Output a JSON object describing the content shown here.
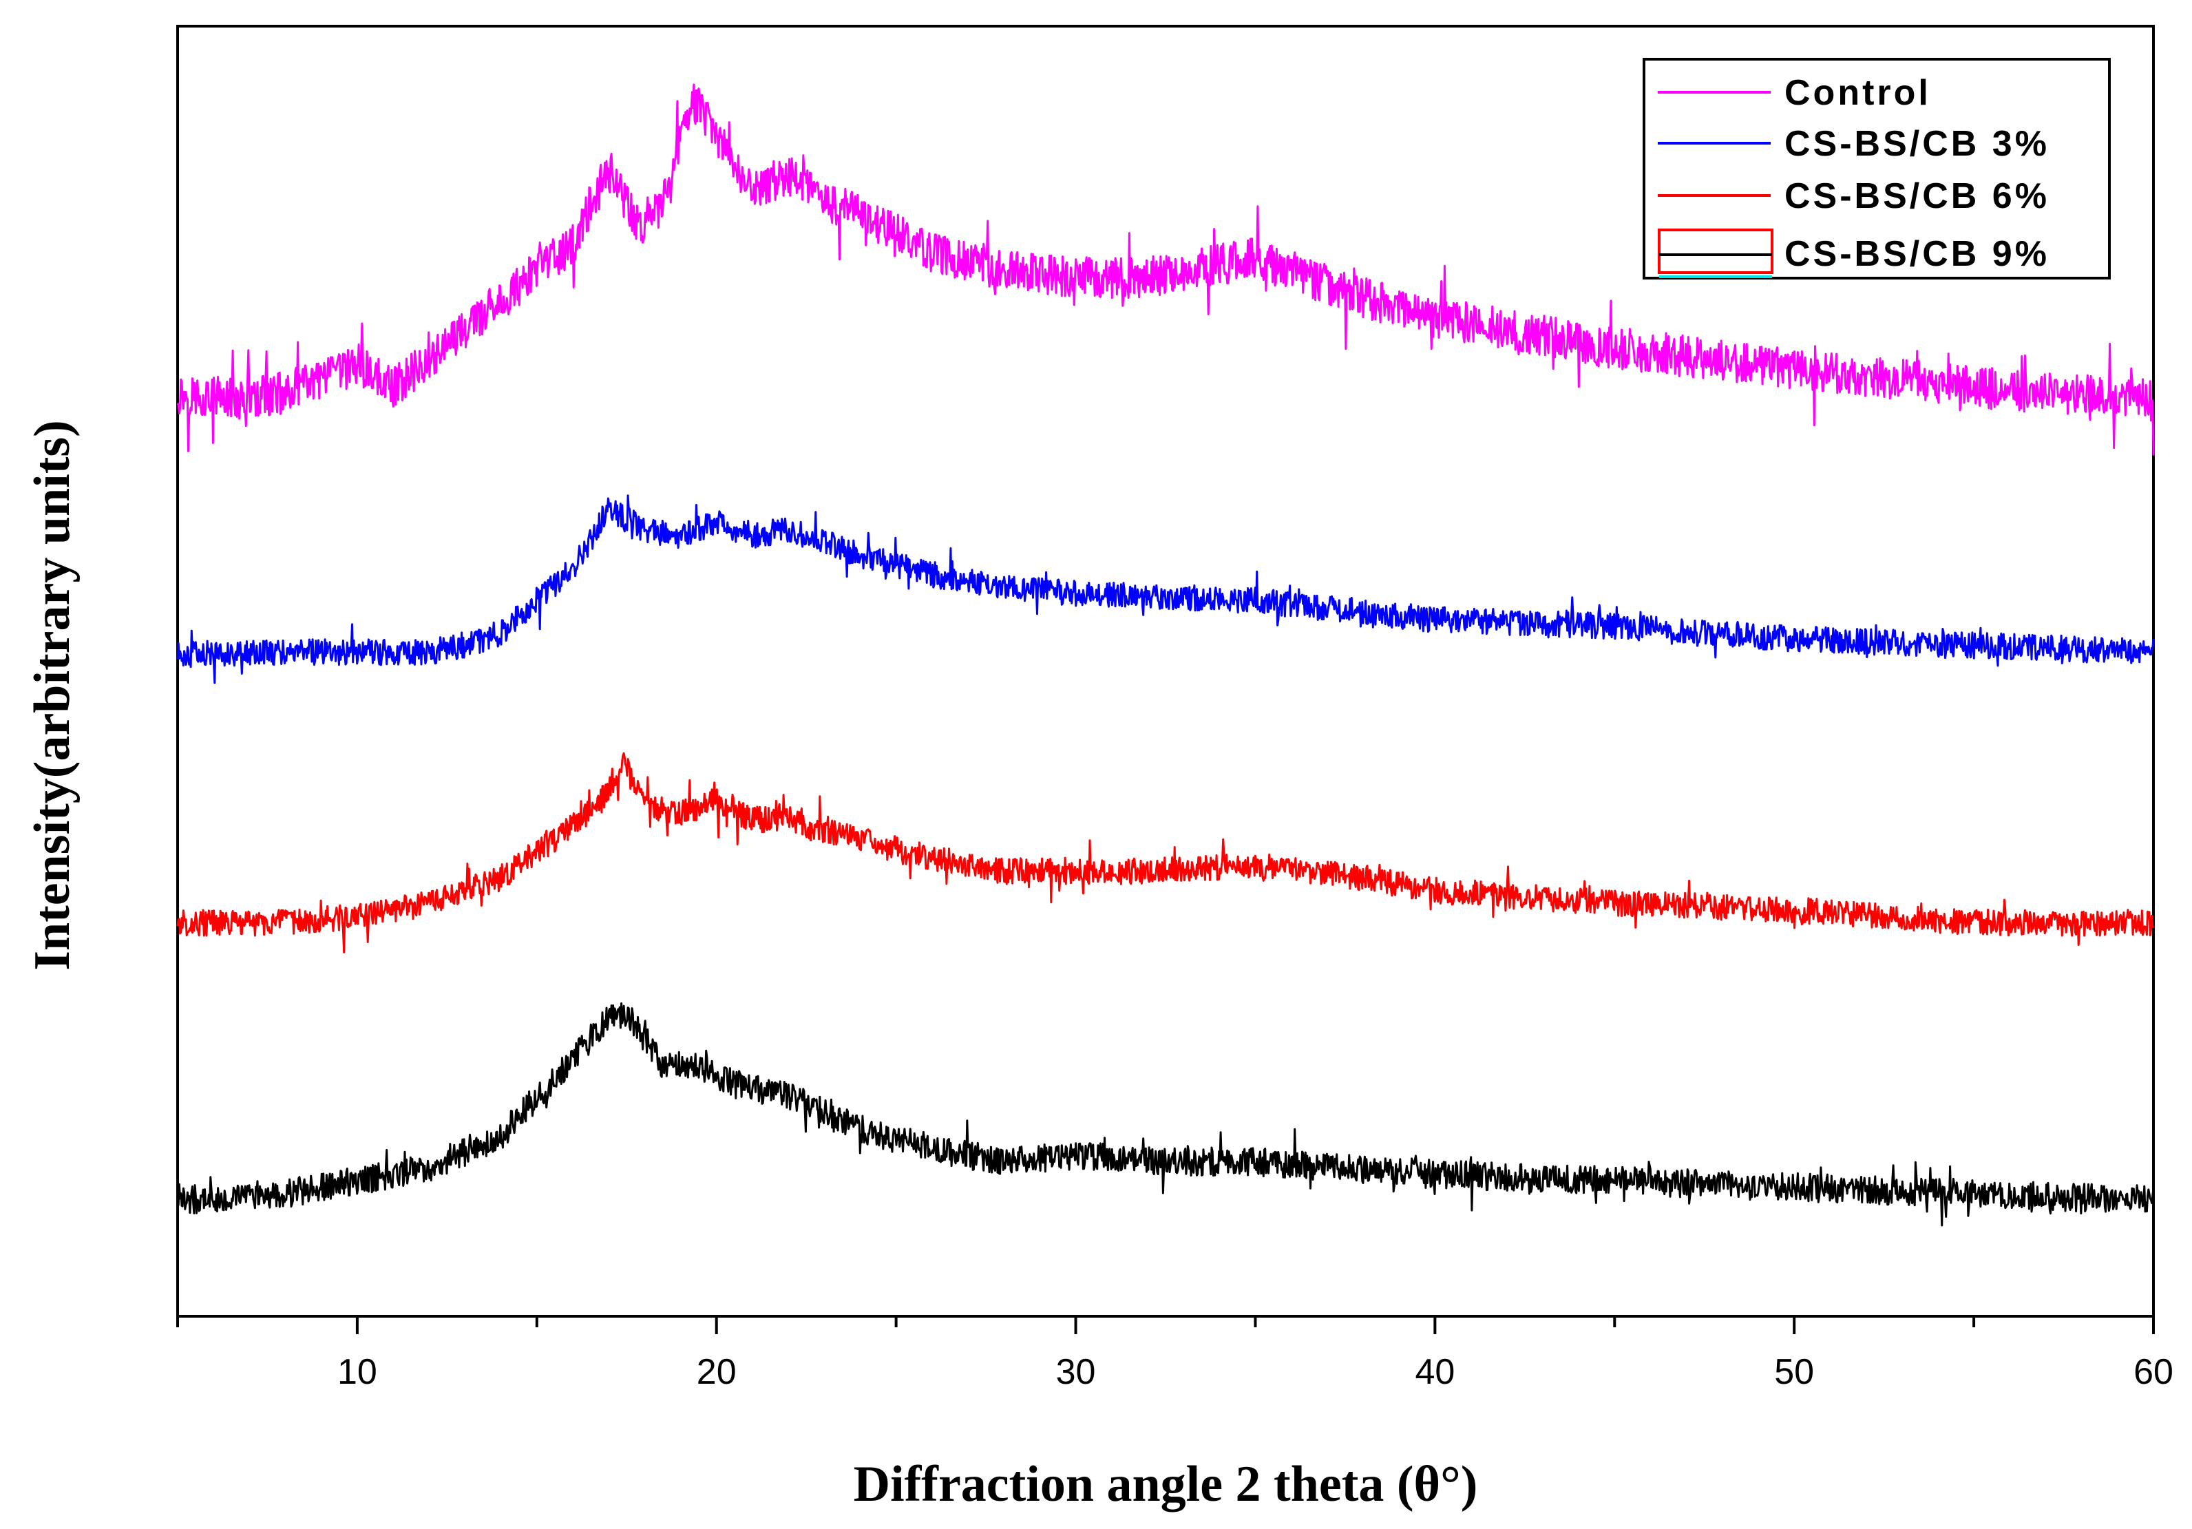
{
  "chart_data": {
    "type": "line",
    "title": "",
    "xlabel": "Diffraction angle 2 theta (θ°)",
    "ylabel": "Intensity(arbitrary units)",
    "xlim": [
      5,
      60
    ],
    "ylim": [
      0,
      100
    ],
    "xticks": [
      10,
      20,
      30,
      40,
      50,
      60
    ],
    "xtick_labels": [
      "10",
      "20",
      "30",
      "40",
      "50",
      "60"
    ],
    "legend_position": "top-right",
    "grid": false,
    "series": [
      {
        "name": "Control",
        "color": "#ff00ff",
        "offset": 70,
        "noise": 1.6,
        "x": [
          5,
          7,
          9,
          10,
          11,
          13,
          15,
          16,
          17,
          17.8,
          18.5,
          19.3,
          20,
          21,
          22,
          23,
          24,
          26,
          28,
          30,
          32,
          35,
          38,
          40,
          45,
          50,
          55,
          60
        ],
        "y": [
          1.5,
          1.0,
          2.5,
          3.8,
          2.0,
          6.5,
          11.0,
          13.0,
          19.0,
          14.5,
          16.0,
          24.5,
          21.5,
          17.0,
          18.5,
          16.5,
          15.5,
          12.5,
          11.0,
          10.5,
          10.5,
          12.0,
          9.0,
          7.5,
          5.0,
          3.5,
          2.0,
          1.0
        ]
      },
      {
        "name": "CS-BS/CB 3%",
        "color": "#0000ff",
        "offset": 51,
        "noise": 1.0,
        "x": [
          5,
          8,
          10,
          12,
          13,
          14,
          15,
          16,
          17,
          18,
          19,
          20,
          21,
          22,
          22.5,
          24,
          26,
          28,
          30,
          35,
          40,
          45,
          50,
          55,
          60
        ],
        "y": [
          0.3,
          0.5,
          0.5,
          0.5,
          1.0,
          2.0,
          4.5,
          7.0,
          11.5,
          10.0,
          9.5,
          10.5,
          9.5,
          10.0,
          9.5,
          8.0,
          6.5,
          5.5,
          5.0,
          4.5,
          3.0,
          2.5,
          1.5,
          1.0,
          0.5
        ]
      },
      {
        "name": "CS-BS/CB 6%",
        "color": "#ff0000",
        "offset": 30,
        "noise": 1.0,
        "x": [
          5,
          8,
          10,
          12,
          14,
          15,
          16,
          16.8,
          17.4,
          18,
          19,
          20,
          21,
          22,
          24,
          26,
          28,
          30,
          32,
          35,
          38,
          40,
          45,
          50,
          55,
          60
        ],
        "y": [
          0.5,
          0.5,
          1.0,
          2.0,
          4.0,
          6.0,
          8.0,
          10.0,
          13.0,
          9.5,
          9.0,
          10.0,
          8.5,
          8.5,
          7.0,
          5.5,
          4.5,
          4.5,
          4.5,
          5.0,
          4.0,
          3.0,
          2.0,
          1.5,
          0.5,
          0.5
        ]
      },
      {
        "name": "CS-BS/CB 9%",
        "color": "#000000",
        "offset": 9,
        "noise": 1.1,
        "x": [
          5,
          8,
          10,
          12,
          14,
          15,
          16,
          17,
          17.5,
          18.5,
          19.5,
          20.5,
          22,
          23,
          24,
          26,
          28,
          30,
          32,
          35,
          40,
          45,
          50,
          55,
          60
        ],
        "y": [
          0.0,
          0.5,
          1.5,
          2.5,
          5.0,
          8.0,
          11.0,
          14.0,
          14.5,
          10.5,
          10.5,
          9.0,
          8.0,
          7.0,
          5.5,
          4.0,
          3.0,
          3.5,
          3.0,
          3.0,
          2.0,
          1.5,
          1.0,
          0.5,
          0.0
        ]
      }
    ]
  }
}
